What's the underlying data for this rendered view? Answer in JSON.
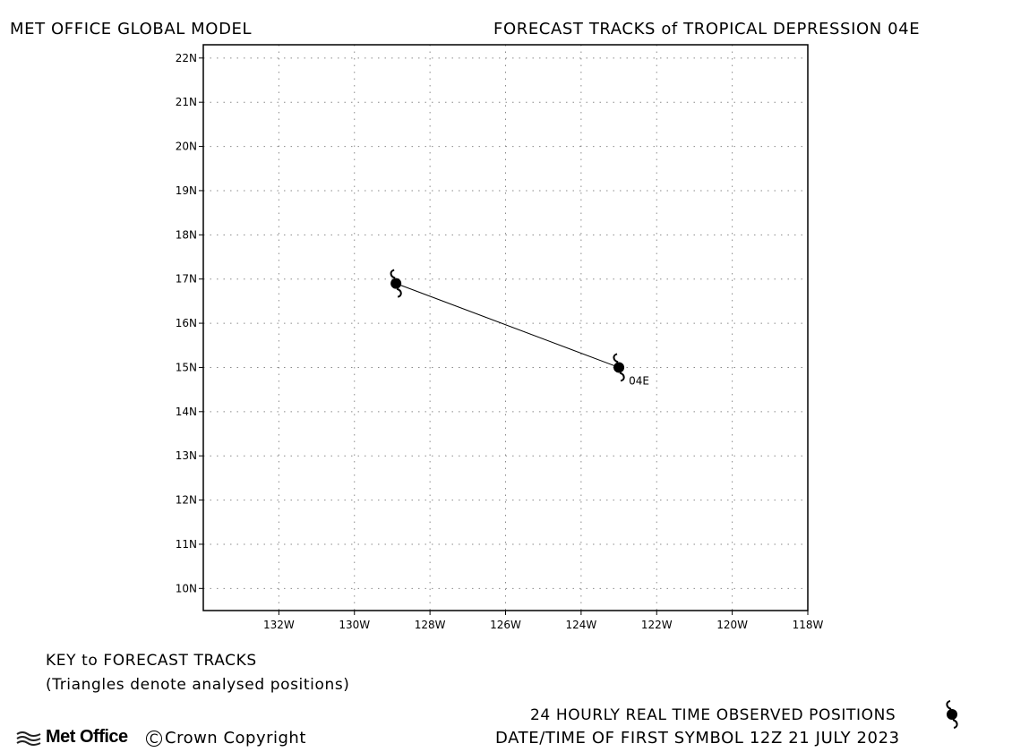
{
  "header": {
    "left_title": "MET OFFICE GLOBAL MODEL",
    "right_title": "FORECAST TRACKS of TROPICAL DEPRESSION 04E"
  },
  "map": {
    "lon_range": [
      -134,
      -118
    ],
    "lat_range": [
      9.5,
      22.3
    ],
    "lon_ticks": [
      {
        "value": -132,
        "label": "132W"
      },
      {
        "value": -130,
        "label": "130W"
      },
      {
        "value": -128,
        "label": "128W"
      },
      {
        "value": -126,
        "label": "126W"
      },
      {
        "value": -124,
        "label": "124W"
      },
      {
        "value": -122,
        "label": "122W"
      },
      {
        "value": -120,
        "label": "120W"
      },
      {
        "value": -118,
        "label": "118W"
      }
    ],
    "lat_ticks": [
      {
        "value": 10,
        "label": "10N"
      },
      {
        "value": 11,
        "label": "11N"
      },
      {
        "value": 12,
        "label": "12N"
      },
      {
        "value": 13,
        "label": "13N"
      },
      {
        "value": 14,
        "label": "14N"
      },
      {
        "value": 15,
        "label": "15N"
      },
      {
        "value": 16,
        "label": "16N"
      },
      {
        "value": 17,
        "label": "17N"
      },
      {
        "value": 18,
        "label": "18N"
      },
      {
        "value": 19,
        "label": "19N"
      },
      {
        "value": 20,
        "label": "20N"
      },
      {
        "value": 21,
        "label": "21N"
      },
      {
        "value": 22,
        "label": "22N"
      }
    ],
    "grid": "dotted",
    "tracks": [
      {
        "label": "04E",
        "points": [
          {
            "lon": -123.0,
            "lat": 15.0
          },
          {
            "lon": -128.9,
            "lat": 16.9
          }
        ]
      }
    ]
  },
  "key": {
    "title": "KEY to FORECAST TRACKS",
    "note": "(Triangles denote analysed positions)"
  },
  "footer": {
    "observed_label": "24 HOURLY REAL TIME OBSERVED POSITIONS",
    "datetime_label": "DATE/TIME OF FIRST SYMBOL 12Z 21 JULY 2023",
    "logo_text": "Met Office",
    "copyright_symbol": "C",
    "copyright_text": "Crown Copyright"
  },
  "symbols": {
    "observed_position_icon": "tropical-cyclone-icon"
  }
}
